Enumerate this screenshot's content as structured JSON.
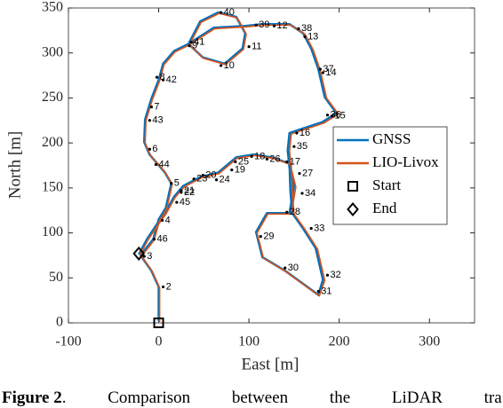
{
  "chart_data": {
    "type": "line",
    "xlabel": "East [m]",
    "ylabel": "North [m]",
    "xlim": [
      -100,
      350
    ],
    "xticks": [
      -100,
      0,
      100,
      200,
      300
    ],
    "ylim": [
      0,
      350
    ],
    "yticks": [
      0,
      50,
      100,
      150,
      200,
      250,
      300,
      350
    ],
    "legend": "right",
    "series": [
      {
        "name": "GNSS",
        "color": "#0072bd",
        "x": [
          0,
          0,
          -8,
          -20,
          -6,
          0,
          8,
          14,
          7,
          -10,
          -16,
          -15,
          -8,
          0,
          5,
          17,
          33,
          46,
          66,
          86,
          96,
          93,
          73,
          49,
          33,
          61,
          96,
          115,
          145,
          160,
          169,
          177,
          184,
          197,
          181,
          160,
          145,
          143,
          145,
          150,
          145,
          120,
          108,
          115,
          140,
          177,
          182,
          174,
          160,
          148,
          146,
          145,
          125,
          105,
          86,
          66,
          46,
          27,
          17,
          7,
          -3,
          -13,
          -22
        ],
        "y": [
          2,
          40,
          58,
          75,
          93,
          115,
          128,
          155,
          167,
          187,
          201,
          226,
          249,
          270,
          288,
          302,
          310,
          335,
          345,
          340,
          322,
          305,
          288,
          295,
          310,
          328,
          330,
          332,
          332,
          322,
          305,
          282,
          251,
          233,
          223,
          216,
          211,
          192,
          172,
          152,
          122,
          122,
          101,
          73,
          58,
          31,
          48,
          83,
          105,
          122,
          147,
          177,
          184,
          187,
          184,
          167,
          162,
          152,
          140,
          122,
          108,
          93,
          76
        ]
      },
      {
        "name": "LIO-Livox",
        "color": "#d95319",
        "x": [
          1,
          1,
          -7,
          -19,
          -5,
          1,
          9,
          15,
          8,
          -9,
          -15,
          -14,
          -7,
          1,
          6,
          18,
          34,
          47,
          67,
          87,
          97,
          94,
          74,
          50,
          34,
          62,
          97,
          116,
          146,
          162,
          171,
          179,
          186,
          199,
          183,
          162,
          147,
          145,
          147,
          152,
          147,
          121,
          109,
          116,
          141,
          178,
          184,
          176,
          162,
          150,
          148,
          147,
          126,
          106,
          87,
          67,
          47,
          28,
          18,
          8,
          -2,
          -12,
          -21
        ],
        "y": [
          1,
          39,
          57,
          74,
          92,
          114,
          127,
          154,
          166,
          186,
          200,
          225,
          248,
          269,
          287,
          301,
          309,
          334,
          344,
          339,
          321,
          304,
          287,
          294,
          309,
          327,
          329,
          331,
          331,
          321,
          304,
          281,
          250,
          232,
          222,
          215,
          210,
          191,
          171,
          151,
          121,
          121,
          100,
          72,
          57,
          30,
          47,
          82,
          104,
          121,
          146,
          176,
          183,
          186,
          183,
          166,
          161,
          151,
          139,
          121,
          107,
          92,
          75
        ]
      }
    ],
    "markers": [
      {
        "name": "Start",
        "symbol": "square",
        "x": 0,
        "y": 0
      },
      {
        "name": "End",
        "symbol": "diamond",
        "x": -22,
        "y": 77
      }
    ],
    "waypoints": [
      {
        "label": "40",
        "x": 69,
        "y": 345
      },
      {
        "label": "39",
        "x": 108,
        "y": 331
      },
      {
        "label": "12",
        "x": 128,
        "y": 330
      },
      {
        "label": "38",
        "x": 155,
        "y": 327
      },
      {
        "label": "13",
        "x": 162,
        "y": 318
      },
      {
        "label": "41",
        "x": 36,
        "y": 312
      },
      {
        "label": "9",
        "x": 34,
        "y": 308
      },
      {
        "label": "11",
        "x": 100,
        "y": 307
      },
      {
        "label": "10",
        "x": 69,
        "y": 286
      },
      {
        "label": "37",
        "x": 179,
        "y": 282
      },
      {
        "label": "14",
        "x": 182,
        "y": 278
      },
      {
        "label": "8",
        "x": -2,
        "y": 273
      },
      {
        "label": "42",
        "x": 5,
        "y": 270
      },
      {
        "label": "7",
        "x": -8,
        "y": 240
      },
      {
        "label": "43",
        "x": -10,
        "y": 225
      },
      {
        "label": "36",
        "x": 187,
        "y": 231
      },
      {
        "label": "15",
        "x": 192,
        "y": 230
      },
      {
        "label": "16",
        "x": 153,
        "y": 211
      },
      {
        "label": "35",
        "x": 150,
        "y": 196
      },
      {
        "label": "6",
        "x": -10,
        "y": 193
      },
      {
        "label": "44",
        "x": -3,
        "y": 176
      },
      {
        "label": "18",
        "x": 103,
        "y": 185
      },
      {
        "label": "26",
        "x": 120,
        "y": 182
      },
      {
        "label": "25",
        "x": 85,
        "y": 179
      },
      {
        "label": "19",
        "x": 81,
        "y": 170
      },
      {
        "label": "20",
        "x": 49,
        "y": 164
      },
      {
        "label": "23",
        "x": 39,
        "y": 160
      },
      {
        "label": "24",
        "x": 64,
        "y": 159
      },
      {
        "label": "17",
        "x": 142,
        "y": 179
      },
      {
        "label": "27",
        "x": 156,
        "y": 166
      },
      {
        "label": "5",
        "x": 14,
        "y": 155
      },
      {
        "label": "21",
        "x": 25,
        "y": 147
      },
      {
        "label": "22",
        "x": 25,
        "y": 145
      },
      {
        "label": "45",
        "x": 20,
        "y": 134
      },
      {
        "label": "34",
        "x": 159,
        "y": 144
      },
      {
        "label": "28",
        "x": 142,
        "y": 123
      },
      {
        "label": "4",
        "x": 4,
        "y": 114
      },
      {
        "label": "33",
        "x": 169,
        "y": 105
      },
      {
        "label": "29",
        "x": 113,
        "y": 96
      },
      {
        "label": "46",
        "x": -5,
        "y": 93
      },
      {
        "label": "3",
        "x": -16,
        "y": 74
      },
      {
        "label": "30",
        "x": 140,
        "y": 61
      },
      {
        "label": "32",
        "x": 187,
        "y": 53
      },
      {
        "label": "31",
        "x": 177,
        "y": 35
      },
      {
        "label": "2",
        "x": 5,
        "y": 40
      }
    ]
  },
  "caption": {
    "label": "Figure 2",
    "text": ". Comparison between the LiDAR tra"
  }
}
